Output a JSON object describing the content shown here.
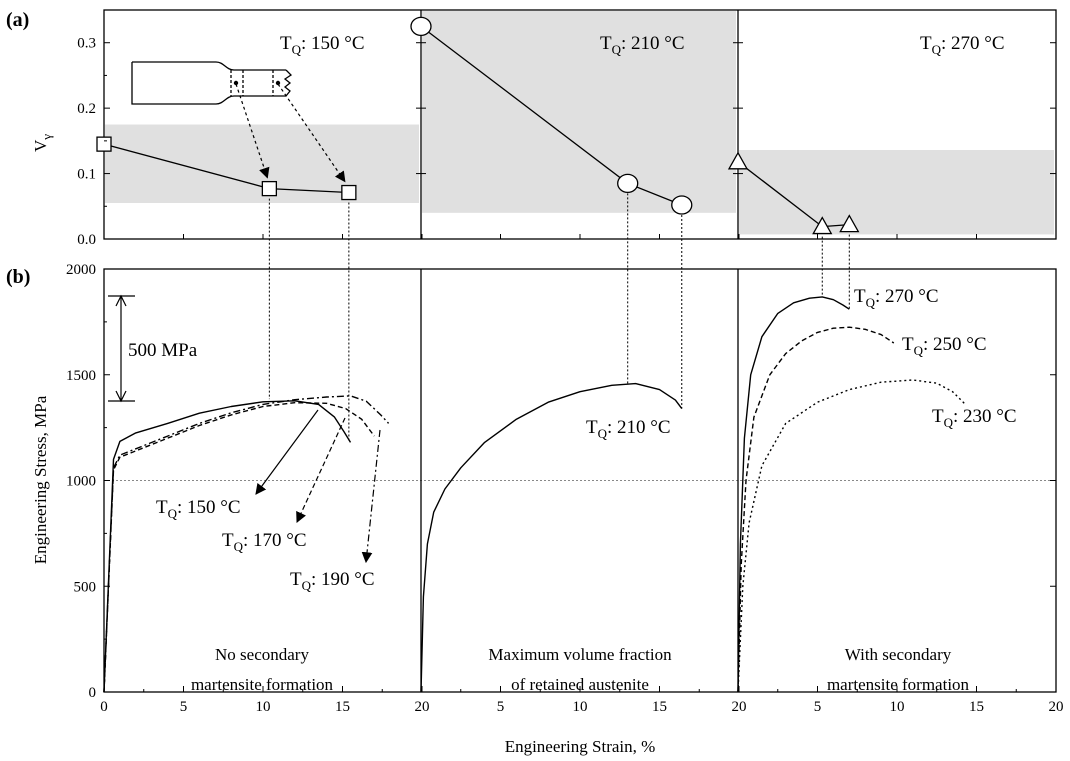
{
  "chart_data": [
    {
      "id": "a",
      "type": "scatter",
      "panel_label": "(a)",
      "ylabel": "V",
      "ylabel_subscript": "γ",
      "ylim": [
        0,
        0.35
      ],
      "yticks": [
        "0.0",
        "0.1",
        "0.2",
        "0.3"
      ],
      "subpanels": [
        {
          "tq_label": "T",
          "tq_sub": "Q",
          "tq_value": ": 150 °C",
          "marker": "square",
          "band": [
            0.055,
            0.175
          ],
          "x": [
            0,
            10.4,
            15.4
          ],
          "y": [
            0.145,
            0.077,
            0.071
          ]
        },
        {
          "tq_label": "T",
          "tq_sub": "Q",
          "tq_value": ": 210 °C",
          "marker": "circle",
          "band": [
            0.04,
            0.36
          ],
          "x": [
            0,
            13,
            16.4
          ],
          "y": [
            0.325,
            0.085,
            0.052
          ]
        },
        {
          "tq_label": "T",
          "tq_sub": "Q",
          "tq_value": ": 270 °C",
          "marker": "triangle",
          "band": [
            0.007,
            0.136
          ],
          "x": [
            0,
            5.3,
            7.0
          ],
          "y": [
            0.118,
            0.019,
            0.022
          ]
        }
      ]
    },
    {
      "id": "b",
      "type": "line",
      "panel_label": "(b)",
      "xlabel": "Engineering Strain, %",
      "ylabel": "Engineering Stress, MPa",
      "ylim": [
        0,
        2000
      ],
      "xlim": [
        0,
        20
      ],
      "yticks": [
        "0",
        "500",
        "1000",
        "1500",
        "2000"
      ],
      "xticks": [
        "0",
        "5",
        "10",
        "15",
        "20",
        "5",
        "10",
        "15",
        "20",
        "5",
        "10",
        "15",
        "20"
      ],
      "reference_line": 1000,
      "scale_bar_label": "500 MPa",
      "subpanels": [
        {
          "note": [
            "No secondary",
            "martensite formation"
          ],
          "series": [
            {
              "tq_label": "T",
              "tq_sub": "Q",
              "tq_value": ": 150 °C",
              "style": "solid",
              "x": [
                0,
                0.6,
                1.0,
                2,
                4,
                6,
                8,
                10,
                12,
                13.5,
                14.5,
                15.1,
                15.5
              ],
              "y": [
                0,
                1100,
                1185,
                1225,
                1270,
                1318,
                1350,
                1372,
                1377,
                1360,
                1300,
                1230,
                1180
              ]
            },
            {
              "tq_label": "T",
              "tq_sub": "Q",
              "tq_value": ": 170 °C",
              "style": "dashed",
              "x": [
                0,
                0.6,
                1.0,
                2,
                4,
                6,
                8,
                10,
                12,
                14,
                15.2,
                16.2,
                17.0
              ],
              "y": [
                0,
                1050,
                1110,
                1140,
                1200,
                1260,
                1310,
                1350,
                1368,
                1365,
                1340,
                1290,
                1210
              ]
            },
            {
              "tq_label": "T",
              "tq_sub": "Q",
              "tq_value": ": 190 °C",
              "style": "dashdot",
              "x": [
                0,
                0.6,
                1.0,
                2,
                4,
                6,
                8,
                10,
                12,
                14,
                15.5,
                16.5,
                17.4,
                17.9
              ],
              "y": [
                0,
                1060,
                1120,
                1150,
                1210,
                1270,
                1320,
                1360,
                1382,
                1395,
                1400,
                1375,
                1310,
                1270
              ]
            }
          ]
        },
        {
          "note": [
            "Maximum volume fraction",
            "of retained austenite"
          ],
          "series": [
            {
              "tq_label": "T",
              "tq_sub": "Q",
              "tq_value": ": 210 °C",
              "style": "solid",
              "x": [
                0,
                0.15,
                0.4,
                0.8,
                1.5,
                2.5,
                4,
                6,
                8,
                10,
                12,
                13.5,
                15,
                16.0,
                16.4
              ],
              "y": [
                0,
                450,
                700,
                850,
                960,
                1060,
                1180,
                1290,
                1370,
                1420,
                1450,
                1458,
                1430,
                1380,
                1340
              ]
            }
          ]
        },
        {
          "note": [
            "With secondary",
            "martensite formation"
          ],
          "series": [
            {
              "tq_label": "T",
              "tq_sub": "Q",
              "tq_value": ": 270 °C",
              "style": "solid",
              "x": [
                0,
                0.15,
                0.4,
                0.8,
                1.5,
                2.5,
                3.5,
                4.5,
                5.3,
                6.0,
                6.6,
                7.0
              ],
              "y": [
                0,
                700,
                1200,
                1500,
                1680,
                1790,
                1840,
                1862,
                1868,
                1855,
                1830,
                1810
              ]
            },
            {
              "tq_label": "T",
              "tq_sub": "Q",
              "tq_value": ": 250 °C",
              "style": "dashed",
              "x": [
                0,
                0.2,
                0.5,
                1,
                2,
                3,
                4,
                5,
                6,
                7,
                8,
                9.0,
                9.8
              ],
              "y": [
                0,
                600,
                1000,
                1300,
                1500,
                1600,
                1660,
                1700,
                1720,
                1725,
                1715,
                1690,
                1650
              ]
            },
            {
              "tq_label": "T",
              "tq_sub": "Q",
              "tq_value": ": 230 °C",
              "style": "dotted",
              "x": [
                0,
                0.3,
                0.7,
                1.5,
                3,
                5,
                7,
                9,
                11,
                12.5,
                13.5,
                14.3
              ],
              "y": [
                0,
                500,
                800,
                1070,
                1270,
                1370,
                1430,
                1465,
                1475,
                1460,
                1420,
                1360
              ]
            }
          ]
        }
      ]
    }
  ]
}
